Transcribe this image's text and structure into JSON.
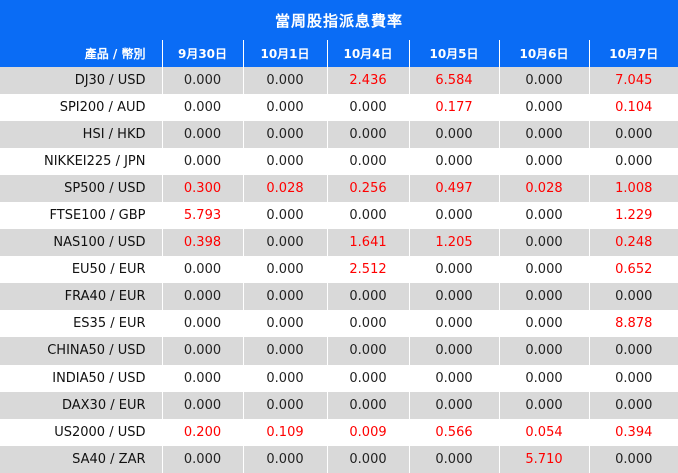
{
  "title": "當周股指派息費率",
  "columns": [
    "產品 / 幣別",
    "9月30日",
    "10月1日",
    "10月4日",
    "10月5日",
    "10月6日",
    "10月7日"
  ],
  "rows": [
    {
      "product": "DJ30 / USD",
      "values": [
        "0.000",
        "0.000",
        "2.436",
        "6.584",
        "0.000",
        "7.045"
      ]
    },
    {
      "product": "SPI200 / AUD",
      "values": [
        "0.000",
        "0.000",
        "0.000",
        "0.177",
        "0.000",
        "0.104"
      ]
    },
    {
      "product": "HSI / HKD",
      "values": [
        "0.000",
        "0.000",
        "0.000",
        "0.000",
        "0.000",
        "0.000"
      ]
    },
    {
      "product": "NIKKEI225 / JPN",
      "values": [
        "0.000",
        "0.000",
        "0.000",
        "0.000",
        "0.000",
        "0.000"
      ]
    },
    {
      "product": "SP500 / USD",
      "values": [
        "0.300",
        "0.028",
        "0.256",
        "0.497",
        "0.028",
        "1.008"
      ]
    },
    {
      "product": "FTSE100 / GBP",
      "values": [
        "5.793",
        "0.000",
        "0.000",
        "0.000",
        "0.000",
        "1.229"
      ]
    },
    {
      "product": "NAS100 / USD",
      "values": [
        "0.398",
        "0.000",
        "1.641",
        "1.205",
        "0.000",
        "0.248"
      ]
    },
    {
      "product": "EU50 / EUR",
      "values": [
        "0.000",
        "0.000",
        "2.512",
        "0.000",
        "0.000",
        "0.652"
      ]
    },
    {
      "product": "FRA40 / EUR",
      "values": [
        "0.000",
        "0.000",
        "0.000",
        "0.000",
        "0.000",
        "0.000"
      ]
    },
    {
      "product": "ES35 / EUR",
      "values": [
        "0.000",
        "0.000",
        "0.000",
        "0.000",
        "0.000",
        "8.878"
      ]
    },
    {
      "product": "CHINA50 / USD",
      "values": [
        "0.000",
        "0.000",
        "0.000",
        "0.000",
        "0.000",
        "0.000"
      ]
    },
    {
      "product": "INDIA50 / USD",
      "values": [
        "0.000",
        "0.000",
        "0.000",
        "0.000",
        "0.000",
        "0.000"
      ]
    },
    {
      "product": "DAX30 / EUR",
      "values": [
        "0.000",
        "0.000",
        "0.000",
        "0.000",
        "0.000",
        "0.000"
      ]
    },
    {
      "product": "US2000 / USD",
      "values": [
        "0.200",
        "0.109",
        "0.009",
        "0.566",
        "0.054",
        "0.394"
      ]
    },
    {
      "product": "SA40 / ZAR",
      "values": [
        "0.000",
        "0.000",
        "0.000",
        "0.000",
        "5.710",
        "0.000"
      ]
    }
  ],
  "colors": {
    "header": "#0a6cf5",
    "positive": "#ff0000",
    "zero": "#222222",
    "stripe": "#d9d9d9"
  }
}
